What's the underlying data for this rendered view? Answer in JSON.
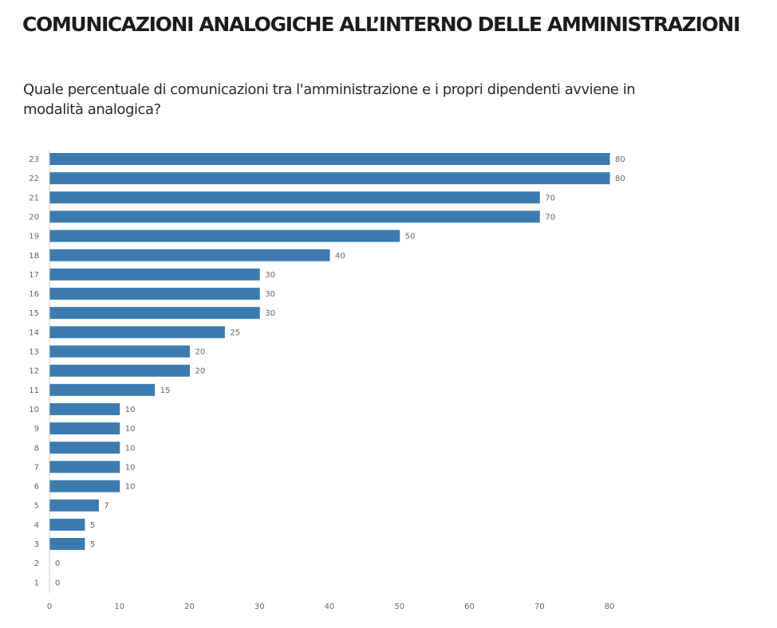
{
  "header": {
    "title": "COMUNICAZIONI ANALOGICHE ALL’INTERNO DELLE AMMINISTRAZIONI",
    "question": "Quale percentuale di comunicazioni tra l'amministrazione e i propri dipendenti avviene in modalità analogica?"
  },
  "chart_data": {
    "type": "bar",
    "orientation": "horizontal",
    "categories": [
      "23",
      "22",
      "21",
      "20",
      "19",
      "18",
      "17",
      "16",
      "15",
      "14",
      "13",
      "12",
      "11",
      "10",
      "9",
      "8",
      "7",
      "6",
      "5",
      "4",
      "3",
      "2",
      "1"
    ],
    "values": [
      80,
      80,
      70,
      70,
      50,
      40,
      30,
      30,
      30,
      25,
      20,
      20,
      15,
      10,
      10,
      10,
      10,
      10,
      7,
      5,
      5,
      0,
      0
    ],
    "title": "COMUNICAZIONI ANALOGICHE ALL’INTERNO DELLE AMMINISTRAZIONI",
    "subtitle": "Quale percentuale di comunicazioni tra l'amministrazione e i propri dipendenti avviene in modalità analogica?",
    "xlabel": "",
    "ylabel": "",
    "xlim": [
      0,
      80
    ],
    "xticks": [
      "0",
      "10",
      "20",
      "30",
      "40",
      "50",
      "60",
      "70",
      "80"
    ],
    "grid": false,
    "legend": "none",
    "data_labels": true,
    "bar_color": "#3b7bb0",
    "label_color": "#666666",
    "axis_color": "#cccccc"
  }
}
